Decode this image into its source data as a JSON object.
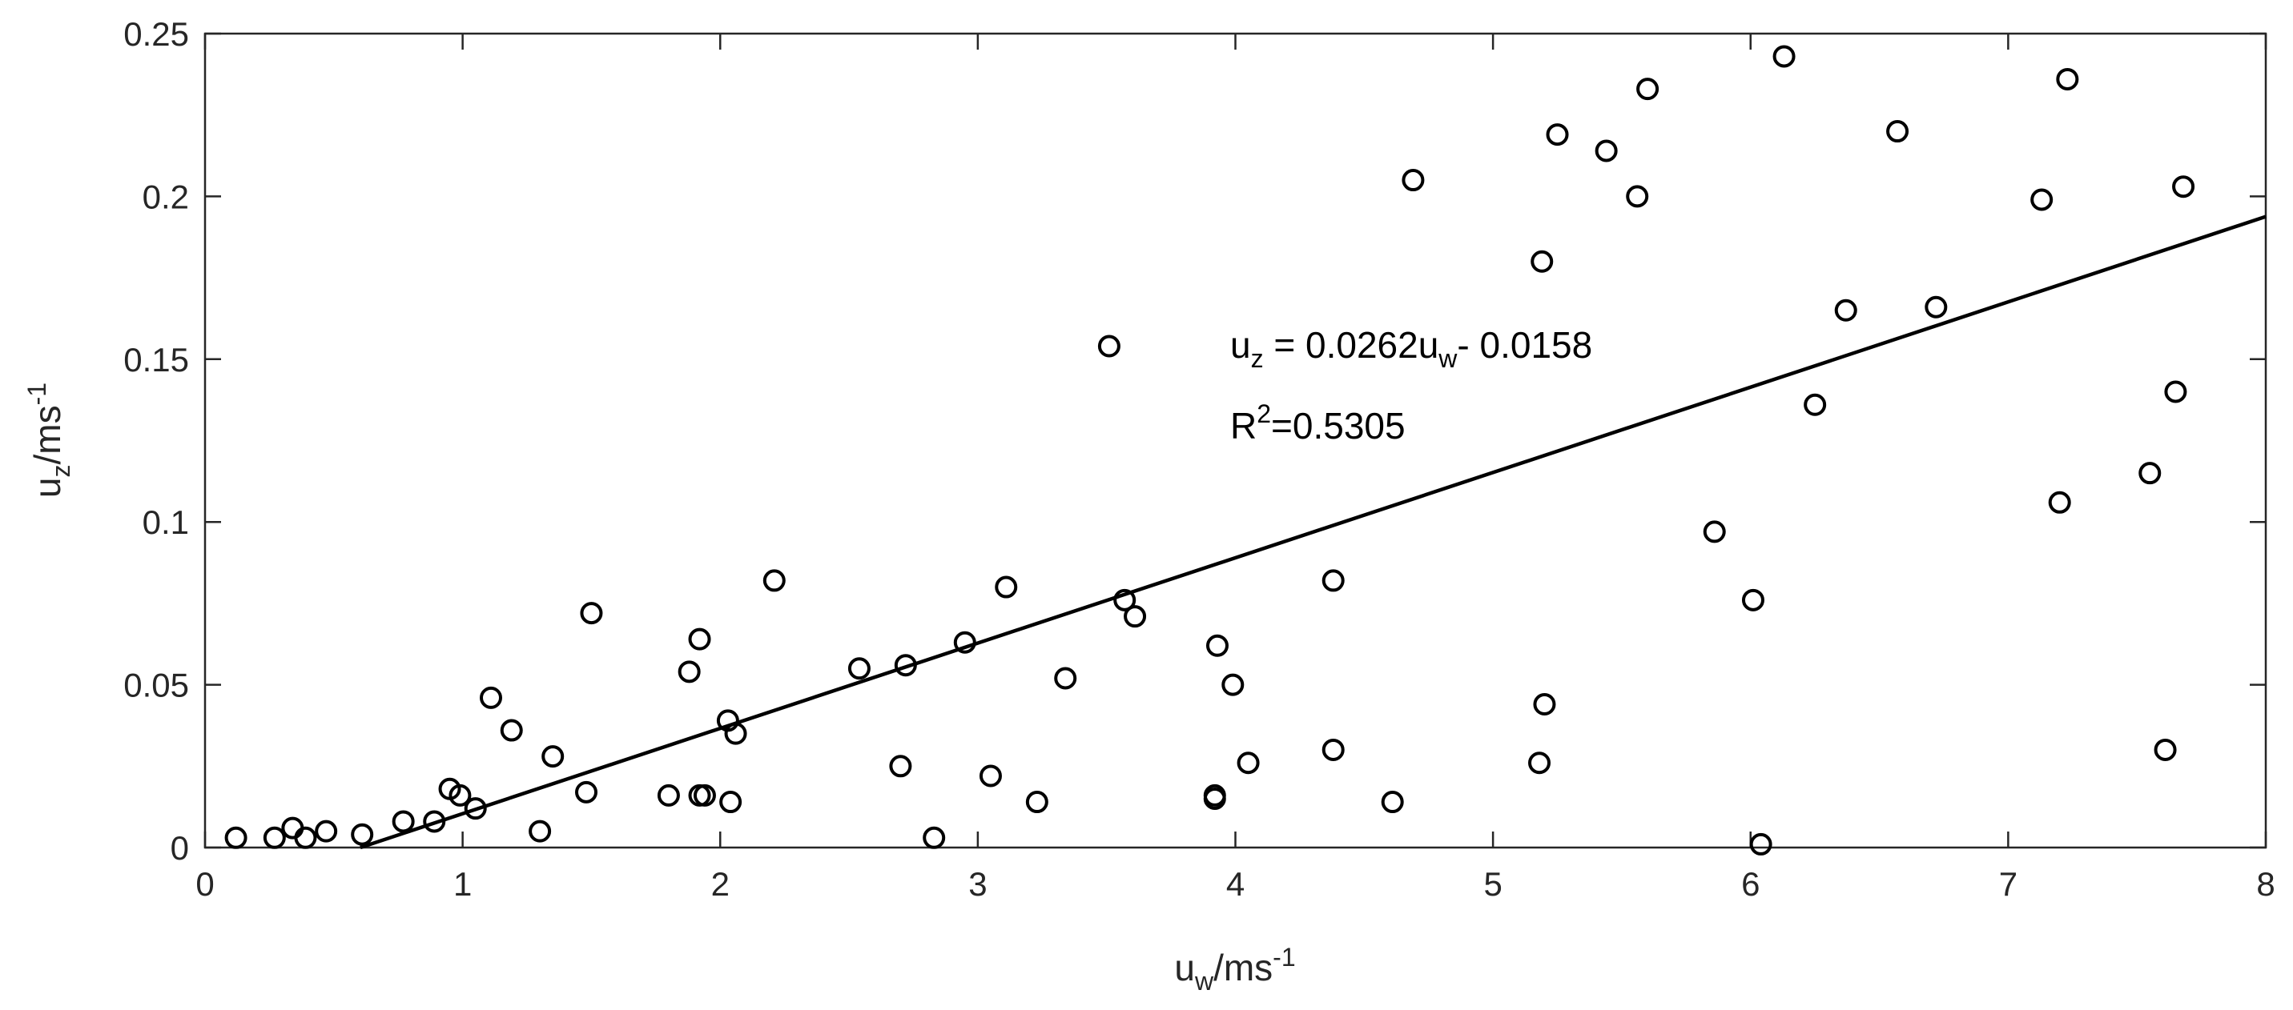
{
  "chart_data": {
    "type": "scatter",
    "title": "",
    "xlabel": {
      "base": "u",
      "sub": "w",
      "rest": "/ms",
      "sup": "-1"
    },
    "ylabel": {
      "base": "u",
      "sub": "z",
      "rest": "/ms",
      "sup": "-1"
    },
    "xlim": [
      0,
      8
    ],
    "ylim": [
      0,
      0.25
    ],
    "xticks": [
      "0",
      "1",
      "2",
      "3",
      "4",
      "5",
      "6",
      "7",
      "8"
    ],
    "xtick_values": [
      0,
      1,
      2,
      3,
      4,
      5,
      6,
      7,
      8
    ],
    "yticks": [
      "0",
      "0.05",
      "0.1",
      "0.15",
      "0.2",
      "0.25"
    ],
    "ytick_values": [
      0,
      0.05,
      0.1,
      0.15,
      0.2,
      0.25
    ],
    "grid": false,
    "marker_color": "#000000",
    "points": [
      [
        0.12,
        0.003
      ],
      [
        0.27,
        0.003
      ],
      [
        0.34,
        0.006
      ],
      [
        0.39,
        0.003
      ],
      [
        0.47,
        0.005
      ],
      [
        0.61,
        0.004
      ],
      [
        0.77,
        0.008
      ],
      [
        0.89,
        0.008
      ],
      [
        0.95,
        0.018
      ],
      [
        0.99,
        0.016
      ],
      [
        1.05,
        0.012
      ],
      [
        1.11,
        0.046
      ],
      [
        1.19,
        0.036
      ],
      [
        1.3,
        0.005
      ],
      [
        1.35,
        0.028
      ],
      [
        1.48,
        0.017
      ],
      [
        1.5,
        0.072
      ],
      [
        1.8,
        0.016
      ],
      [
        1.88,
        0.054
      ],
      [
        1.92,
        0.016
      ],
      [
        1.92,
        0.064
      ],
      [
        1.94,
        0.016
      ],
      [
        2.03,
        0.039
      ],
      [
        2.04,
        0.014
      ],
      [
        2.06,
        0.035
      ],
      [
        2.21,
        0.082
      ],
      [
        2.54,
        0.055
      ],
      [
        2.7,
        0.025
      ],
      [
        2.72,
        0.056
      ],
      [
        2.83,
        0.003
      ],
      [
        2.95,
        0.063
      ],
      [
        3.05,
        0.022
      ],
      [
        3.11,
        0.08
      ],
      [
        3.23,
        0.014
      ],
      [
        3.34,
        0.052
      ],
      [
        3.51,
        0.154
      ],
      [
        3.57,
        0.076
      ],
      [
        3.61,
        0.071
      ],
      [
        3.92,
        0.016
      ],
      [
        3.92,
        0.015
      ],
      [
        3.93,
        0.062
      ],
      [
        3.99,
        0.05
      ],
      [
        4.05,
        0.026
      ],
      [
        4.38,
        0.082
      ],
      [
        4.38,
        0.03
      ],
      [
        4.61,
        0.014
      ],
      [
        4.69,
        0.205
      ],
      [
        5.18,
        0.026
      ],
      [
        5.19,
        0.18
      ],
      [
        5.2,
        0.044
      ],
      [
        5.25,
        0.219
      ],
      [
        5.44,
        0.214
      ],
      [
        5.56,
        0.2
      ],
      [
        5.6,
        0.233
      ],
      [
        5.86,
        0.097
      ],
      [
        6.01,
        0.076
      ],
      [
        6.04,
        0.001
      ],
      [
        6.13,
        0.243
      ],
      [
        6.25,
        0.136
      ],
      [
        6.37,
        0.165
      ],
      [
        6.57,
        0.22
      ],
      [
        6.72,
        0.166
      ],
      [
        7.13,
        0.199
      ],
      [
        7.2,
        0.106
      ],
      [
        7.23,
        0.236
      ],
      [
        7.55,
        0.115
      ],
      [
        7.61,
        0.03
      ],
      [
        7.65,
        0.14
      ],
      [
        7.68,
        0.203
      ]
    ],
    "fit_line": {
      "x_start": 0.603,
      "x_end": 8,
      "slope": 0.0262,
      "intercept": -0.0158
    },
    "annotations": {
      "equation": {
        "lhs_base": "u",
        "lhs_sub": "z",
        "mid": " = 0.0262u",
        "mid_sub": "w",
        "rhs": "- 0.0158"
      },
      "r2": {
        "base": "R",
        "sup": "2",
        "rest": "=0.5305"
      }
    }
  }
}
